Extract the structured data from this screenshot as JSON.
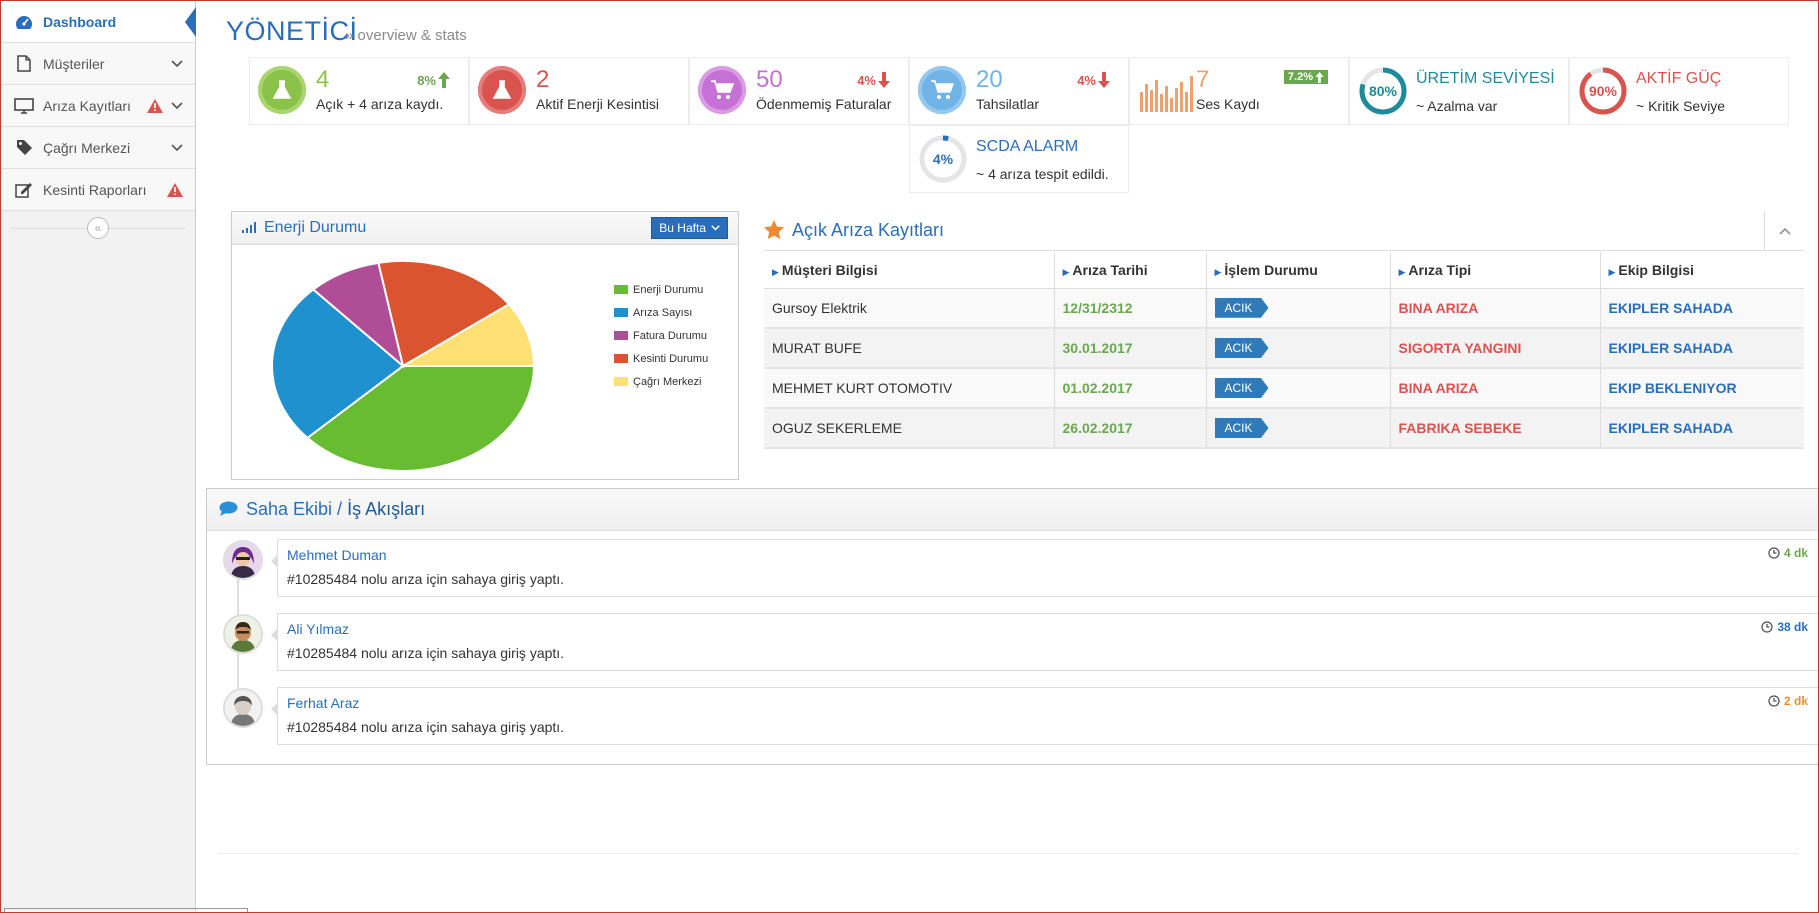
{
  "sidebar": {
    "items": [
      {
        "label": "Dashboard"
      },
      {
        "label": "Müşteriler"
      },
      {
        "label": "Arıza Kayıtları"
      },
      {
        "label": "Çağrı Merkezi"
      },
      {
        "label": "Kesinti Raporları"
      }
    ],
    "collapse_glyph": "«"
  },
  "header": {
    "title": "YÖNETİCİ",
    "subtitle": "» overview & stats"
  },
  "stats": [
    {
      "value": "4",
      "label": "Açık + 4 arıza kaydı.",
      "change": "8%",
      "trend": "up",
      "color": "#8bc34a"
    },
    {
      "value": "2",
      "label": "Aktif Enerji Kesintisi",
      "color": "#d9534f"
    },
    {
      "value": "50",
      "label": "Ödenmemiş Faturalar",
      "change": "4%",
      "trend": "down",
      "color": "#c671d6"
    },
    {
      "value": "20",
      "label": "Tahsilatlar",
      "change": "4%",
      "trend": "down",
      "color": "#6fb3e7"
    },
    {
      "value": "7",
      "label": "Ses Kaydı",
      "change": "7.2%",
      "trend": "up",
      "color": "#f0a06a"
    },
    {
      "percent": "80%",
      "title": "ÜRETİM SEVİYESİ",
      "subtitle": "~ Azalma var",
      "fraction": 0.8,
      "color": "#1f8b9a"
    },
    {
      "percent": "90%",
      "title": "AKTİF GÜÇ",
      "subtitle": "~ Kritik Seviye",
      "fraction": 0.9,
      "color": "#d9534f"
    },
    {
      "percent": "4%",
      "title": "SCDA ALARM",
      "subtitle": "~ 4 arıza tespit edildi.",
      "fraction": 0.04,
      "color": "#2a6ebb"
    }
  ],
  "energy": {
    "title": "Enerji Durumu",
    "button": "Bu Hafta",
    "chart_data": {
      "type": "pie",
      "categories": [
        "Enerji Durumu",
        "Arıza Sayısı",
        "Fatura Durumu",
        "Kesinti Durumu",
        "Çağrı Merkezi"
      ],
      "values": [
        38,
        25,
        9,
        18,
        10
      ],
      "colors": [
        "#68bc31",
        "#2091cf",
        "#af4e96",
        "#da5430",
        "#fee074"
      ]
    }
  },
  "faults": {
    "title": "Açık Arıza Kayıtları",
    "columns": [
      "Müşteri Bilgisi",
      "Arıza Tarihi",
      "İşlem Durumu",
      "Arıza Tipi",
      "Ekip Bilgisi"
    ],
    "rows": [
      {
        "customer": "Gursoy Elektrik",
        "date": "12/31/2312",
        "status": "ACIK",
        "type": "BINA ARIZA",
        "team": "EKIPLER SAHADA"
      },
      {
        "customer": "MURAT BUFE",
        "date": "30.01.2017",
        "status": "ACIK",
        "type": "SIGORTA YANGINI",
        "team": "EKIPLER SAHADA"
      },
      {
        "customer": "MEHMET KURT OTOMOTIV",
        "date": "01.02.2017",
        "status": "ACIK",
        "type": "BINA ARIZA",
        "team": "EKIP BEKLENIYOR"
      },
      {
        "customer": "OGUZ SEKERLEME",
        "date": "26.02.2017",
        "status": "ACIK",
        "type": "FABRIKA SEBEKE",
        "team": "EKIPLER SAHADA"
      }
    ]
  },
  "timeline": {
    "title_plain": "Saha Ekibi /",
    "title_bold": "İş Akışları",
    "items": [
      {
        "name": "Mehmet Duman",
        "message": "#10285484 nolu arıza için sahaya giriş yaptı.",
        "time": "4 dk",
        "time_color": "#6aa84f"
      },
      {
        "name": "Ali Yılmaz",
        "message": "#10285484 nolu arıza için sahaya giriş yaptı.",
        "time": "38 dk",
        "time_color": "#2a6ebb"
      },
      {
        "name": "Ferhat Araz",
        "message": "#10285484 nolu arıza için sahaya giriş yaptı.",
        "time": "2 dk",
        "time_color": "#e69138"
      }
    ]
  }
}
